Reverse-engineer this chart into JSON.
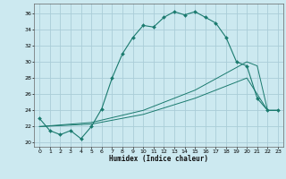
{
  "xlabel": "Humidex (Indice chaleur)",
  "bg_color": "#cce9f0",
  "grid_color": "#aacdd8",
  "line_color": "#1a7a6e",
  "xlim": [
    -0.5,
    23.5
  ],
  "ylim": [
    19.5,
    37.2
  ],
  "yticks": [
    20,
    22,
    24,
    26,
    28,
    30,
    32,
    34,
    36
  ],
  "xticks": [
    0,
    1,
    2,
    3,
    4,
    5,
    6,
    7,
    8,
    9,
    10,
    11,
    12,
    13,
    14,
    15,
    16,
    17,
    18,
    19,
    20,
    21,
    22,
    23
  ],
  "series1_x": [
    0,
    1,
    2,
    3,
    4,
    5,
    6,
    7,
    8,
    9,
    10,
    11,
    12,
    13,
    14,
    15,
    16,
    17,
    18,
    19,
    20,
    21,
    22,
    23
  ],
  "series1_y": [
    23.0,
    21.5,
    21.0,
    21.5,
    20.5,
    22.0,
    24.2,
    28.0,
    31.0,
    33.0,
    34.5,
    34.3,
    35.5,
    36.2,
    35.8,
    36.2,
    35.5,
    34.8,
    33.0,
    30.0,
    29.5,
    25.5,
    24.0,
    24.0
  ],
  "series2_x": [
    0,
    5,
    10,
    15,
    20,
    21,
    22,
    23
  ],
  "series2_y": [
    22.0,
    22.5,
    24.0,
    26.5,
    30.0,
    29.5,
    24.0,
    24.0
  ],
  "series3_x": [
    0,
    5,
    10,
    15,
    20,
    22,
    23
  ],
  "series3_y": [
    22.0,
    22.3,
    23.5,
    25.5,
    28.0,
    24.0,
    24.0
  ]
}
